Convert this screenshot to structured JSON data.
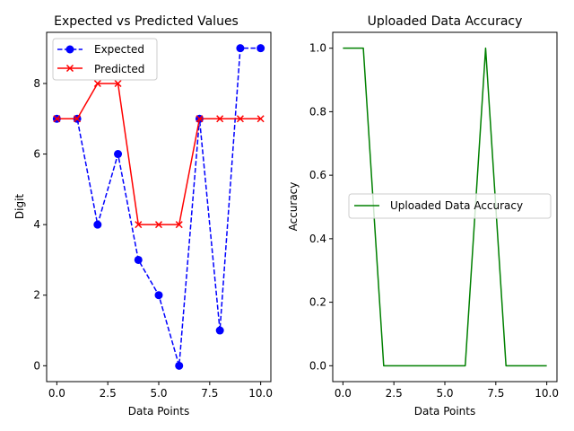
{
  "chart_data": [
    {
      "type": "line",
      "title": "Expected vs Predicted Values",
      "xlabel": "Data Points",
      "ylabel": "Digit",
      "xlim": [
        -0.5,
        10.5
      ],
      "ylim": [
        -0.45,
        9.45
      ],
      "xticks": [
        0,
        2.5,
        5,
        7.5,
        10
      ],
      "xtick_labels": [
        "0.0",
        "2.5",
        "5.0",
        "7.5",
        "10.0"
      ],
      "yticks": [
        0,
        2,
        4,
        6,
        8
      ],
      "ytick_labels": [
        "0",
        "2",
        "4",
        "6",
        "8"
      ],
      "grid": false,
      "legend": "top-left",
      "x": [
        0,
        1,
        2,
        3,
        4,
        5,
        6,
        7,
        8,
        9,
        10
      ],
      "series": [
        {
          "name": "Expected",
          "values": [
            7,
            7,
            4,
            6,
            3,
            2,
            0,
            7,
            1,
            9,
            9
          ],
          "color": "#0000ff",
          "dash": "dashed",
          "marker": "circle"
        },
        {
          "name": "Predicted",
          "values": [
            7,
            7,
            8,
            8,
            4,
            4,
            4,
            7,
            7,
            7,
            7
          ],
          "color": "#ff0000",
          "dash": "solid",
          "marker": "x"
        }
      ]
    },
    {
      "type": "line",
      "title": "Uploaded Data Accuracy",
      "xlabel": "Data Points",
      "ylabel": "Accuracy",
      "xlim": [
        -0.5,
        10.5
      ],
      "ylim": [
        -0.05,
        1.05
      ],
      "xticks": [
        0,
        2.5,
        5,
        7.5,
        10
      ],
      "xtick_labels": [
        "0.0",
        "2.5",
        "5.0",
        "7.5",
        "10.0"
      ],
      "yticks": [
        0,
        0.2,
        0.4,
        0.6,
        0.8,
        1.0
      ],
      "ytick_labels": [
        "0.0",
        "0.2",
        "0.4",
        "0.6",
        "0.8",
        "1.0"
      ],
      "grid": false,
      "legend": "center-right",
      "x": [
        0,
        1,
        2,
        3,
        4,
        5,
        6,
        7,
        8,
        9,
        10
      ],
      "series": [
        {
          "name": "Uploaded Data Accuracy",
          "values": [
            1,
            1,
            0,
            0,
            0,
            0,
            0,
            1,
            0,
            0,
            0
          ],
          "color": "#008000",
          "dash": "solid",
          "marker": "none"
        }
      ]
    }
  ]
}
